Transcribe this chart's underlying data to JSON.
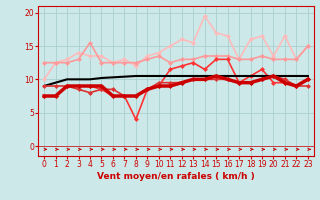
{
  "x": [
    0,
    1,
    2,
    3,
    4,
    5,
    6,
    7,
    8,
    9,
    10,
    11,
    12,
    13,
    14,
    15,
    16,
    17,
    18,
    19,
    20,
    21,
    22,
    23
  ],
  "bg_color": "#cce8e8",
  "grid_color": "#aad0d0",
  "xlabel": "Vent moyen/en rafales ( km/h )",
  "ylabel_ticks": [
    0,
    5,
    10,
    15,
    20
  ],
  "ylim": [
    -1.5,
    21
  ],
  "xlim": [
    -0.5,
    23.5
  ],
  "lines": [
    {
      "y": [
        9.0,
        9.5,
        10.0,
        10.0,
        10.0,
        10.2,
        10.3,
        10.4,
        10.5,
        10.5,
        10.5,
        10.5,
        10.5,
        10.5,
        10.5,
        10.5,
        10.5,
        10.5,
        10.5,
        10.5,
        10.5,
        10.5,
        10.5,
        10.5
      ],
      "color": "#000000",
      "lw": 1.5,
      "marker": null,
      "zorder": 5
    },
    {
      "y": [
        7.5,
        7.5,
        9.0,
        9.0,
        9.0,
        9.0,
        7.5,
        7.5,
        7.5,
        8.5,
        9.0,
        9.0,
        9.5,
        10.0,
        10.0,
        10.5,
        10.0,
        9.5,
        9.5,
        10.0,
        10.5,
        9.5,
        9.0,
        10.0
      ],
      "color": "#cc0000",
      "lw": 2.5,
      "marker": "D",
      "markersize": 2.0,
      "zorder": 6
    },
    {
      "y": [
        9.0,
        9.0,
        9.0,
        8.5,
        8.0,
        8.5,
        8.5,
        7.5,
        7.5,
        8.5,
        9.5,
        9.5,
        9.5,
        10.0,
        10.0,
        10.0,
        10.0,
        9.5,
        9.5,
        10.0,
        10.5,
        10.0,
        9.0,
        9.0
      ],
      "color": "#dd3333",
      "lw": 1.2,
      "marker": "D",
      "markersize": 2.0,
      "zorder": 5
    },
    {
      "y": [
        7.5,
        7.5,
        9.0,
        9.0,
        9.0,
        8.5,
        7.5,
        7.5,
        4.0,
        8.5,
        9.0,
        11.5,
        12.0,
        12.5,
        11.5,
        13.0,
        13.0,
        9.5,
        10.5,
        11.5,
        9.5,
        9.5,
        9.0,
        10.0
      ],
      "color": "#ff3333",
      "lw": 1.2,
      "marker": "D",
      "markersize": 2.0,
      "zorder": 4
    },
    {
      "y": [
        12.5,
        12.5,
        12.5,
        13.0,
        15.5,
        12.5,
        12.5,
        12.5,
        12.5,
        13.0,
        13.5,
        12.5,
        13.0,
        13.0,
        13.5,
        13.5,
        13.5,
        13.0,
        13.0,
        13.5,
        13.0,
        13.0,
        13.0,
        15.0
      ],
      "color": "#ff9999",
      "lw": 1.2,
      "marker": "D",
      "markersize": 2.0,
      "zorder": 3
    },
    {
      "y": [
        10.0,
        12.5,
        13.0,
        14.0,
        13.5,
        13.5,
        12.5,
        13.0,
        12.0,
        13.5,
        14.0,
        15.0,
        16.0,
        15.5,
        19.5,
        17.0,
        16.5,
        13.0,
        16.0,
        16.5,
        13.5,
        16.5,
        13.0,
        15.0
      ],
      "color": "#ffbbbb",
      "lw": 1.2,
      "marker": "D",
      "markersize": 2.0,
      "zorder": 2
    }
  ],
  "arrow_color": "#cc0000",
  "axis_label_fontsize": 6.5,
  "tick_fontsize": 5.5
}
